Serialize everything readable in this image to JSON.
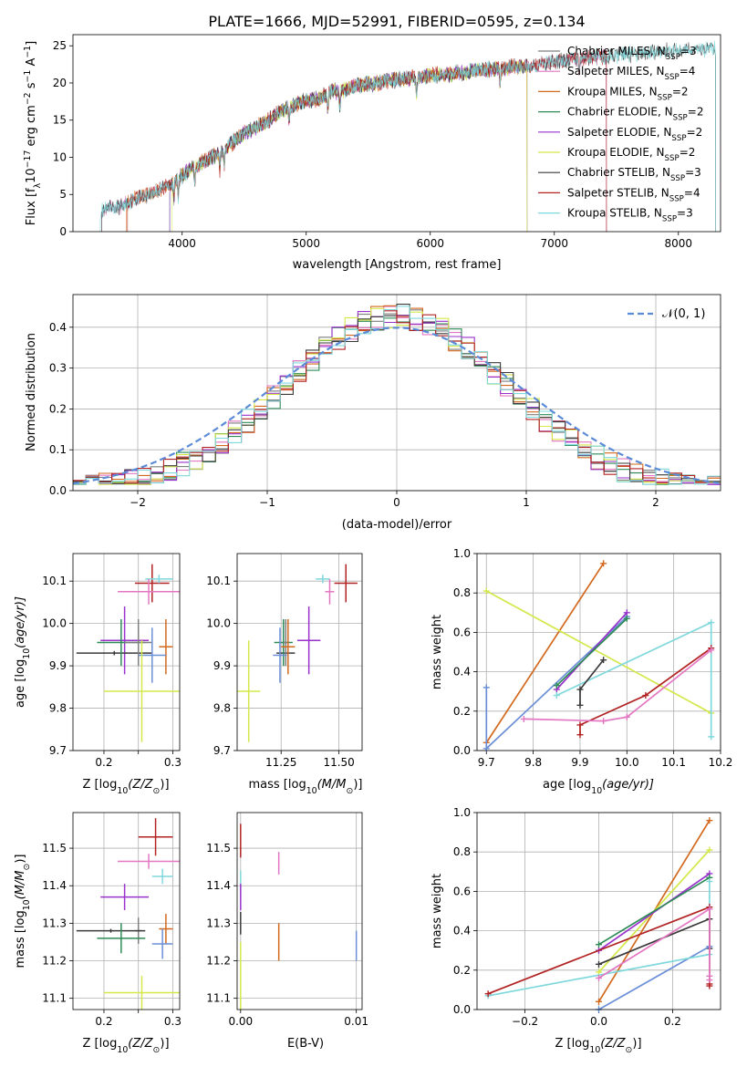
{
  "figure_title": "PLATE=1666, MJD=52991, FIBERID=0595, z=0.134",
  "colors": {
    "CM": "#7f7f7f",
    "SM": "#e377c2",
    "KM": "#d2691e",
    "CE": "#2e8b57",
    "SE": "#9932cc",
    "KE": "#d4e84a",
    "CS": "#3a3a3a",
    "SS": "#b22222",
    "KS": "#7fd8dc",
    "gauss": "#5b8bd6",
    "tm": "#6b8fd6"
  },
  "chart_data": [
    {
      "id": "spectrum",
      "type": "line",
      "xlabel": "wavelength [Angstrom, rest frame]",
      "ylabel_pre": "Flux [f",
      "ylabel_lambda": "λ",
      "ylabel_mid": "10",
      "ylabel_exp": "−17",
      "ylabel_post": " erg cm",
      "ylabel_exp2": "−2",
      "ylabel_post2": " s",
      "ylabel_exp3": "−1",
      "ylabel_post3": " A",
      "ylabel_exp4": "−1",
      "ylabel_end": "]",
      "xlim": [
        3120,
        8340
      ],
      "ylim": [
        0,
        26.5
      ],
      "xticks": [
        4000,
        5000,
        6000,
        7000,
        8000
      ],
      "yticks": [
        0,
        5,
        10,
        15,
        20,
        25
      ],
      "grid": false,
      "legend_placement": "upper-right",
      "continuum": [
        [
          3340,
          2.8
        ],
        [
          3500,
          3.4
        ],
        [
          3600,
          4.2
        ],
        [
          3750,
          5.2
        ],
        [
          3850,
          6.0
        ],
        [
          3950,
          6.8
        ],
        [
          4050,
          8.2
        ],
        [
          4150,
          9.3
        ],
        [
          4300,
          10.5
        ],
        [
          4400,
          11.9
        ],
        [
          4500,
          13.2
        ],
        [
          4600,
          14.1
        ],
        [
          4700,
          15.0
        ],
        [
          4800,
          16.3
        ],
        [
          4900,
          17.0
        ],
        [
          5000,
          17.6
        ],
        [
          5100,
          17.8
        ],
        [
          5200,
          18.8
        ],
        [
          5300,
          19.0
        ],
        [
          5400,
          19.7
        ],
        [
          5500,
          19.9
        ],
        [
          5600,
          20.1
        ],
        [
          5700,
          20.4
        ],
        [
          5800,
          20.5
        ],
        [
          5900,
          20.9
        ],
        [
          6000,
          21.0
        ],
        [
          6200,
          21.3
        ],
        [
          6400,
          21.7
        ],
        [
          6600,
          22.1
        ],
        [
          6800,
          22.3
        ],
        [
          7000,
          22.8
        ],
        [
          7200,
          23.3
        ],
        [
          7400,
          23.6
        ],
        [
          7700,
          23.9
        ],
        [
          8000,
          24.4
        ],
        [
          8300,
          24.6
        ]
      ],
      "series": [
        {
          "key": "CM",
          "label": "Chabrier MILES, N",
          "sub": "SSP",
          "val": "=3",
          "range": [
            3350,
            7420
          ]
        },
        {
          "key": "SM",
          "label": "Salpeter MILES, N",
          "sub": "SSP",
          "val": "=4",
          "range": [
            3350,
            7420
          ]
        },
        {
          "key": "KM",
          "label": "Kroupa MILES, N",
          "sub": "SSP",
          "val": "=2",
          "range": [
            3550,
            6780
          ]
        },
        {
          "key": "CE",
          "label": "Chabrier ELODIE, N",
          "sub": "SSP",
          "val": "=2",
          "range": [
            3900,
            6780
          ]
        },
        {
          "key": "SE",
          "label": "Salpeter ELODIE, N",
          "sub": "SSP",
          "val": "=2",
          "range": [
            3900,
            6780
          ]
        },
        {
          "key": "KE",
          "label": "Kroupa ELODIE, N",
          "sub": "SSP",
          "val": "=2",
          "range": [
            3920,
            6780
          ]
        },
        {
          "key": "CS",
          "label": "Chabrier STELIB, N",
          "sub": "SSP",
          "val": "=3",
          "range": [
            3350,
            8300
          ]
        },
        {
          "key": "SS",
          "label": "Salpeter STELIB, N",
          "sub": "SSP",
          "val": "=4",
          "range": [
            3560,
            7420
          ]
        },
        {
          "key": "KS",
          "label": "Kroupa STELIB, N",
          "sub": "SSP",
          "val": "=3",
          "range": [
            3340,
            8300
          ]
        }
      ]
    },
    {
      "id": "residuals",
      "type": "histogram",
      "xlabel": "(data-model)/error",
      "ylabel": "Normed distribution",
      "xlim": [
        -2.5,
        2.5
      ],
      "ylim": [
        0,
        0.48
      ],
      "xticks": [
        -2,
        -1,
        0,
        1,
        2
      ],
      "xtick_labels": [
        "−2",
        "−1",
        "0",
        "1",
        "2"
      ],
      "yticks": [
        0.0,
        0.1,
        0.2,
        0.3,
        0.4
      ],
      "ytick_labels": [
        "0.0",
        "0.1",
        "0.2",
        "0.3",
        "0.4"
      ],
      "grid": true,
      "legend_placement": "upper-right",
      "gauss_label": "𝒩(0, 1)",
      "bin_width": 0.1,
      "keys": [
        "CM",
        "SM",
        "KM",
        "CE",
        "SE",
        "KE",
        "CS",
        "SS",
        "KS"
      ]
    },
    {
      "id": "age_vs_Z",
      "type": "errorbar",
      "xlabel_pre": "Z [log",
      "xlabel_sub": "10",
      "xlabel_post": "(Z/Z",
      "xlabel_sun": "⊙",
      "xlabel_end": ")]",
      "ylabel_pre": "age  [log",
      "ylabel_sub": "10",
      "ylabel_post": "(age/yr)]",
      "xlim": [
        0.155,
        0.31
      ],
      "ylim": [
        9.7,
        10.165
      ],
      "xticks": [
        0.2,
        0.25,
        0.3
      ],
      "xtick_labels": [
        "0.2",
        "",
        "0.3"
      ],
      "yticks": [
        9.7,
        9.8,
        9.9,
        10.0,
        10.1
      ],
      "ytick_labels": [
        "9.7",
        "9.8",
        "9.9",
        "10.0",
        "10.1"
      ],
      "grid": true,
      "points": [
        {
          "key": "SS",
          "x": 0.27,
          "xe": 0.025,
          "y": 10.095,
          "ye": 0.045
        },
        {
          "key": "KS",
          "x": 0.28,
          "xe": 0.02,
          "y": 10.105,
          "ye": 0.01
        },
        {
          "key": "SM",
          "x": 0.265,
          "xe": 0.045,
          "y": 10.075,
          "ye": 0.03
        },
        {
          "key": "SE",
          "x": 0.23,
          "xe": 0.035,
          "y": 9.96,
          "ye": 0.08
        },
        {
          "key": "CS",
          "x": 0.215,
          "xe": 0.055,
          "y": 9.93,
          "ye": 0.005
        },
        {
          "key": "CE",
          "x": 0.225,
          "xe": 0.035,
          "y": 9.955,
          "ye": 0.055
        },
        {
          "key": "CM",
          "x": 0.25,
          "xe": 0.02,
          "y": 9.955,
          "ye": 0.055
        },
        {
          "key": "KM",
          "x": 0.29,
          "xe": 0.01,
          "y": 9.945,
          "ye": 0.065
        },
        {
          "key": "tm",
          "x": 0.27,
          "xe": 0.02,
          "y": 9.925,
          "ye": 0.065
        },
        {
          "key": "KE",
          "x": 0.255,
          "xe": 0.055,
          "y": 9.84,
          "ye": 0.12
        }
      ]
    },
    {
      "id": "age_vs_mass",
      "type": "errorbar",
      "xlabel_pre": "mass [log",
      "xlabel_sub": "10",
      "xlabel_post": "(M/M",
      "xlabel_sun": "⊙",
      "xlabel_end": ")]",
      "xlim": [
        11.06,
        11.6
      ],
      "ylim": [
        9.7,
        10.165
      ],
      "xticks": [
        11.25,
        11.5
      ],
      "xtick_labels": [
        "11.25",
        "11.50"
      ],
      "yticks": [
        9.7,
        9.8,
        9.9,
        10.0,
        10.1
      ],
      "ytick_labels": [
        "9.7",
        "9.8",
        "9.9",
        "10.0",
        "10.1"
      ],
      "grid": true,
      "points": [
        {
          "key": "SS",
          "x": 11.53,
          "xe": 0.05,
          "y": 10.095,
          "ye": 0.045
        },
        {
          "key": "KS",
          "x": 11.43,
          "xe": 0.03,
          "y": 10.105,
          "ye": 0.01
        },
        {
          "key": "SM",
          "x": 11.46,
          "xe": 0.02,
          "y": 10.075,
          "ye": 0.03
        },
        {
          "key": "SE",
          "x": 11.37,
          "xe": 0.05,
          "y": 9.96,
          "ye": 0.08
        },
        {
          "key": "CS",
          "x": 11.27,
          "xe": 0.04,
          "y": 9.93,
          "ye": 0.005
        },
        {
          "key": "CE",
          "x": 11.26,
          "xe": 0.04,
          "y": 9.955,
          "ye": 0.055
        },
        {
          "key": "CM",
          "x": 11.27,
          "xe": 0.01,
          "y": 9.955,
          "ye": 0.055
        },
        {
          "key": "KM",
          "x": 11.28,
          "xe": 0.03,
          "y": 9.945,
          "ye": 0.065
        },
        {
          "key": "tm",
          "x": 11.245,
          "xe": 0.03,
          "y": 9.925,
          "ye": 0.065
        },
        {
          "key": "KE",
          "x": 11.11,
          "xe": 0.05,
          "y": 9.84,
          "ye": 0.12
        }
      ]
    },
    {
      "id": "mw_vs_age",
      "type": "line",
      "xlabel_pre": "age  [log",
      "xlabel_sub": "10",
      "xlabel_post": "(age/yr)]",
      "ylabel": "mass weight",
      "xlim": [
        9.68,
        10.2
      ],
      "ylim": [
        0,
        1.0
      ],
      "xticks": [
        9.7,
        9.8,
        9.9,
        10.0,
        10.1,
        10.2
      ],
      "xtick_labels": [
        "9.7",
        "9.8",
        "9.9",
        "10.0",
        "10.1",
        "10.2"
      ],
      "yticks": [
        0,
        0.2,
        0.4,
        0.6,
        0.8,
        1.0
      ],
      "ytick_labels": [
        "0.0",
        "0.2",
        "0.4",
        "0.6",
        "0.8",
        "1.0"
      ],
      "grid": true,
      "lines": [
        {
          "key": "KM",
          "x": [
            9.7,
            9.95
          ],
          "y": [
            0.04,
            0.95
          ]
        },
        {
          "key": "KE",
          "x": [
            9.7,
            10.18
          ],
          "y": [
            0.81,
            0.19
          ]
        },
        {
          "key": "tm",
          "x": [
            9.7,
            9.7,
            10.0
          ],
          "y": [
            0.32,
            0.01,
            0.68
          ]
        },
        {
          "key": "SE",
          "x": [
            9.85,
            10.0
          ],
          "y": [
            0.31,
            0.7
          ]
        },
        {
          "key": "CE",
          "x": [
            9.85,
            10.0
          ],
          "y": [
            0.33,
            0.67
          ]
        },
        {
          "key": "KS",
          "x": [
            9.85,
            10.18,
            10.18
          ],
          "y": [
            0.28,
            0.65,
            0.07
          ]
        },
        {
          "key": "CS",
          "x": [
            9.9,
            9.9,
            9.95
          ],
          "y": [
            0.23,
            0.31,
            0.46
          ]
        },
        {
          "key": "SS",
          "x": [
            9.9,
            9.9,
            10.04,
            10.18
          ],
          "y": [
            0.08,
            0.13,
            0.28,
            0.52
          ]
        },
        {
          "key": "SM",
          "x": [
            9.78,
            9.95,
            10.0,
            10.18
          ],
          "y": [
            0.16,
            0.15,
            0.17,
            0.51
          ]
        }
      ]
    },
    {
      "id": "mass_vs_Z",
      "type": "errorbar",
      "xlabel_pre": "Z [log",
      "xlabel_sub": "10",
      "xlabel_post": "(Z/Z",
      "xlabel_sun": "⊙",
      "xlabel_end": ")]",
      "ylabel_pre": "mass [log",
      "ylabel_sub": "10",
      "ylabel_post": "(M/M",
      "ylabel_sun": "⊙",
      "ylabel_end": ")]",
      "xlim": [
        0.155,
        0.31
      ],
      "ylim": [
        11.07,
        11.595
      ],
      "xticks": [
        0.2,
        0.25,
        0.3
      ],
      "xtick_labels": [
        "0.2",
        "",
        "0.3"
      ],
      "yticks": [
        11.1,
        11.2,
        11.3,
        11.4,
        11.5
      ],
      "ytick_labels": [
        "11.1",
        "11.2",
        "11.3",
        "11.4",
        "11.5"
      ],
      "grid": true,
      "points": [
        {
          "key": "SS",
          "x": 0.275,
          "xe": 0.025,
          "y": 11.53,
          "ye": 0.05
        },
        {
          "key": "SM",
          "x": 0.265,
          "xe": 0.045,
          "y": 11.465,
          "ye": 0.02
        },
        {
          "key": "KS",
          "x": 0.285,
          "xe": 0.015,
          "y": 11.425,
          "ye": 0.02
        },
        {
          "key": "SE",
          "x": 0.23,
          "xe": 0.035,
          "y": 11.37,
          "ye": 0.035
        },
        {
          "key": "CM",
          "x": 0.25,
          "xe": 0.005,
          "y": 11.28,
          "ye": 0.035
        },
        {
          "key": "KM",
          "x": 0.29,
          "xe": 0.01,
          "y": 11.285,
          "ye": 0.04
        },
        {
          "key": "CS",
          "x": 0.21,
          "xe": 0.05,
          "y": 11.28,
          "ye": 0.005
        },
        {
          "key": "CE",
          "x": 0.225,
          "xe": 0.035,
          "y": 11.26,
          "ye": 0.04
        },
        {
          "key": "tm",
          "x": 0.285,
          "xe": 0.015,
          "y": 11.245,
          "ye": 0.04
        },
        {
          "key": "KE",
          "x": 0.255,
          "xe": 0.055,
          "y": 11.115,
          "ye": 0.045
        }
      ]
    },
    {
      "id": "mass_vs_ebv",
      "type": "errorbar",
      "xlabel": "E(B-V)",
      "xlim": [
        -0.0003,
        0.0105
      ],
      "ylim": [
        11.07,
        11.595
      ],
      "xticks": [
        0.0,
        0.01
      ],
      "xtick_labels": [
        "0.00",
        "0.01"
      ],
      "yticks": [
        11.1,
        11.2,
        11.3,
        11.4,
        11.5
      ],
      "ytick_labels": [
        "11.1",
        "11.2",
        "11.3",
        "11.4",
        "11.5"
      ],
      "grid": true,
      "points": [
        {
          "key": "SS",
          "x": 0.0,
          "xe": 0,
          "y": 11.52,
          "ye": 0.045
        },
        {
          "key": "SM",
          "x": 0.0033,
          "xe": 0,
          "y": 11.46,
          "ye": 0.03
        },
        {
          "key": "KS",
          "x": 0.0,
          "xe": 0,
          "y": 11.41,
          "ye": 0.03
        },
        {
          "key": "SE",
          "x": 0.0,
          "xe": 0,
          "y": 11.37,
          "ye": 0.035
        },
        {
          "key": "CS",
          "x": 0.0,
          "xe": 0,
          "y": 11.3,
          "ye": 0.03
        },
        {
          "key": "KM",
          "x": 0.0033,
          "xe": 0,
          "y": 11.25,
          "ye": 0.05
        },
        {
          "key": "tm",
          "x": 0.01,
          "xe": 0,
          "y": 11.24,
          "ye": 0.04
        },
        {
          "key": "KE",
          "x": 0.0,
          "xe": 0,
          "y": 11.16,
          "ye": 0.09
        }
      ]
    },
    {
      "id": "mw_vs_Z",
      "type": "line",
      "xlabel_pre": "Z [log",
      "xlabel_sub": "10",
      "xlabel_post": "(Z/Z",
      "xlabel_sun": "⊙",
      "xlabel_end": ")]",
      "ylabel": "mass weight",
      "xlim": [
        -0.33,
        0.33
      ],
      "ylim": [
        0,
        1.0
      ],
      "xticks": [
        -0.2,
        0.0,
        0.2
      ],
      "xtick_labels": [
        "−0.2",
        "0.0",
        "0.2"
      ],
      "yticks": [
        0,
        0.2,
        0.4,
        0.6,
        0.8,
        1.0
      ],
      "ytick_labels": [
        "0.0",
        "0.2",
        "0.4",
        "0.6",
        "0.8",
        "1.0"
      ],
      "grid": true,
      "lines": [
        {
          "key": "KM",
          "x": [
            0.0,
            0.3
          ],
          "y": [
            0.04,
            0.96
          ]
        },
        {
          "key": "KE",
          "x": [
            0.0,
            0.3
          ],
          "y": [
            0.19,
            0.81
          ]
        },
        {
          "key": "SE",
          "x": [
            0.0,
            0.3
          ],
          "y": [
            0.3,
            0.69
          ]
        },
        {
          "key": "CE",
          "x": [
            0.0,
            0.3
          ],
          "y": [
            0.33,
            0.67
          ]
        },
        {
          "key": "CS",
          "x": [
            0.0,
            0.3,
            0.3
          ],
          "y": [
            0.23,
            0.46,
            0.31
          ]
        },
        {
          "key": "tm",
          "x": [
            0.0,
            0.3
          ],
          "y": [
            0.0,
            0.32
          ]
        },
        {
          "key": "KS",
          "x": [
            -0.3,
            0.3,
            0.3
          ],
          "y": [
            0.07,
            0.28,
            0.65
          ]
        },
        {
          "key": "SS",
          "x": [
            -0.3,
            0.3,
            0.3,
            0.3
          ],
          "y": [
            0.08,
            0.52,
            0.13,
            0.12
          ]
        },
        {
          "key": "SM",
          "x": [
            0.0,
            0.3,
            0.3,
            0.3
          ],
          "y": [
            0.16,
            0.51,
            0.17,
            0.15
          ]
        }
      ]
    }
  ]
}
